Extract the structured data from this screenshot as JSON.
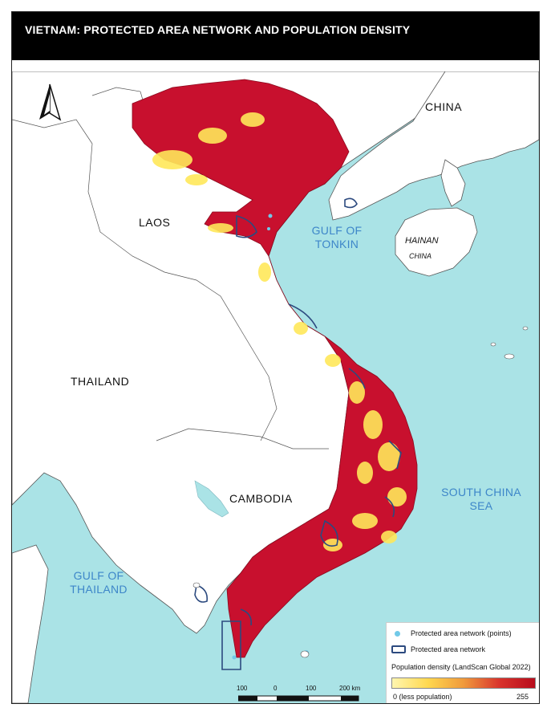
{
  "title": "VIETNAM: PROTECTED AREA NETWORK AND POPULATION DENSITY",
  "labels": {
    "china": "CHINA",
    "laos": "LAOS",
    "thailand": "THAILAND",
    "cambodia": "CAMBODIA",
    "hainan": "HAINAN",
    "hainan_sub": "CHINA",
    "gulf_tonkin_1": "GULF OF",
    "gulf_tonkin_2": "TONKIN",
    "scs_1": "SOUTH CHINA",
    "scs_2": "SEA",
    "gulf_thailand_1": "GULF OF",
    "gulf_thailand_2": "THAILAND"
  },
  "legend": {
    "points": "Protected area network (points)",
    "polygons": "Protected area network",
    "density_title": "Population density (LandScan Global 2022)",
    "min_label": "0 (less population)",
    "max_label": "255",
    "colors": {
      "point": "#71c9e8",
      "polygon": "#2c4a7f",
      "low": "#fff6b0",
      "high": "#b80c1c"
    }
  },
  "scale_bar": {
    "ticks": [
      "100",
      "0",
      "100",
      "200 km"
    ]
  },
  "icons": {
    "north_arrow": "north-arrow-icon"
  },
  "colors": {
    "sea": "#aae3e6",
    "land": "#ffffff",
    "vietnam_high": "#c8102e",
    "vietnam_low": "#ffe85a",
    "border": "#555555"
  }
}
